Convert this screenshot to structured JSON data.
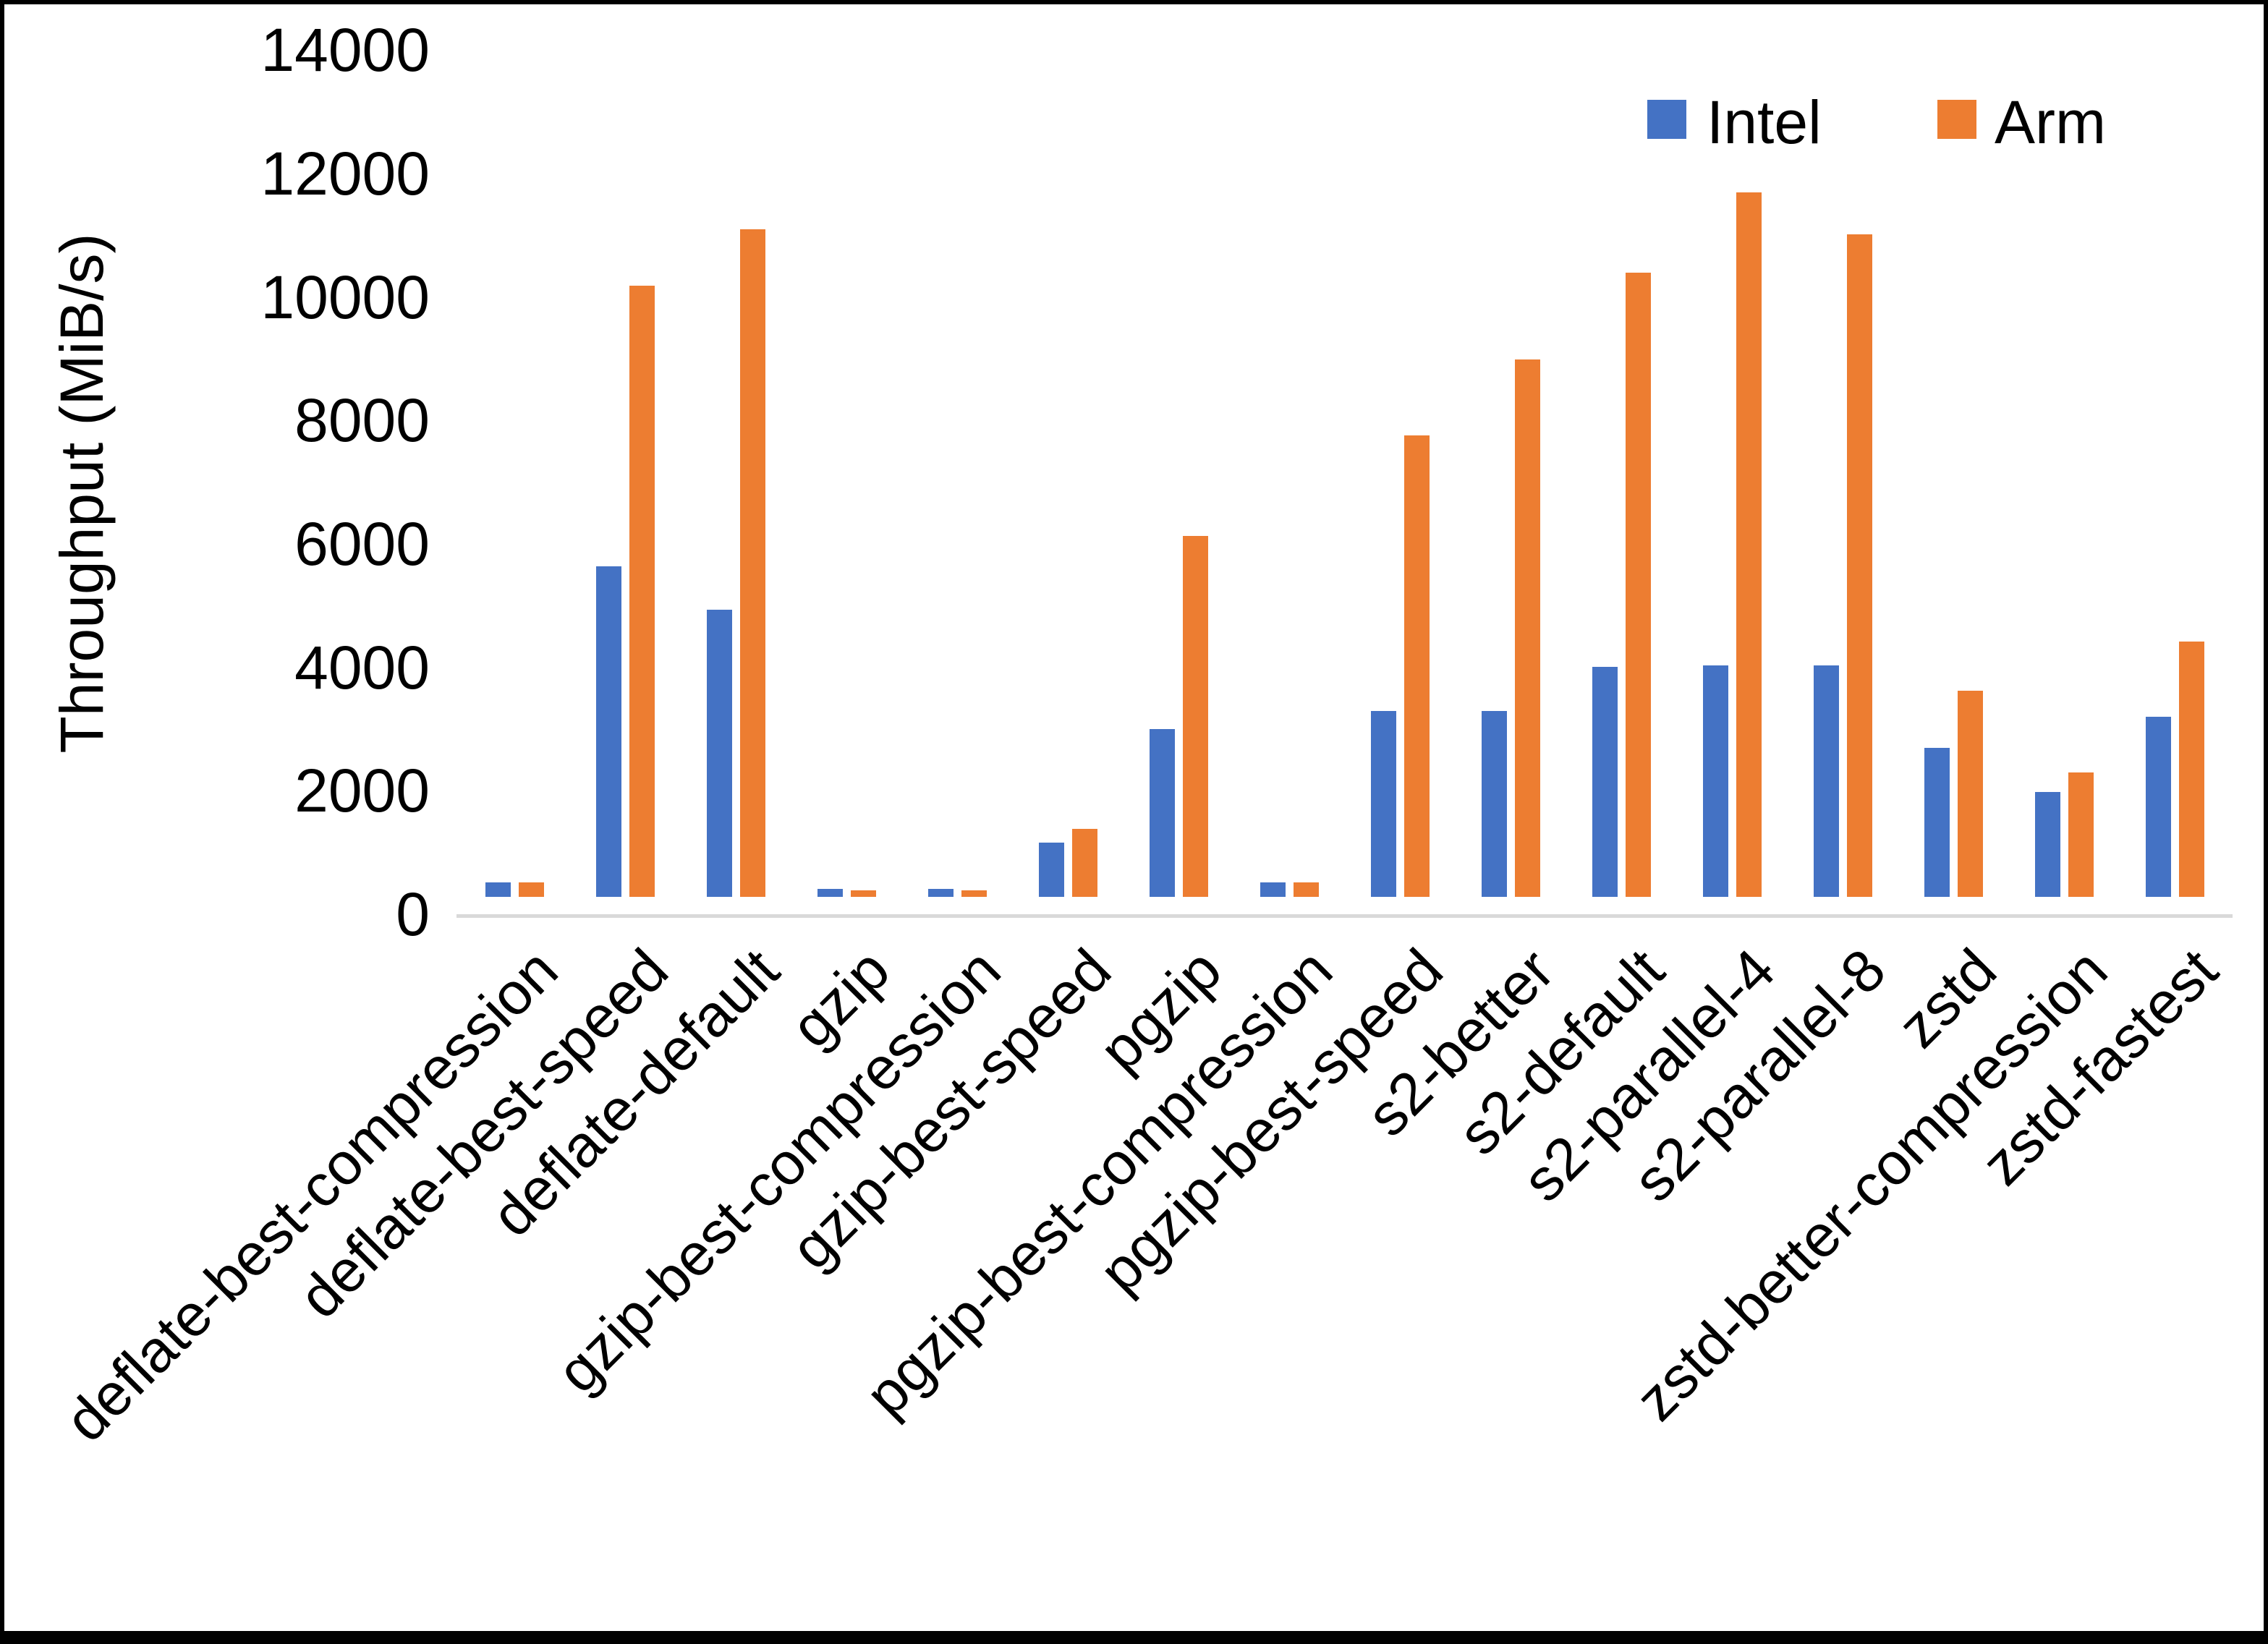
{
  "page": {
    "background": "#ffffff",
    "frame_color": "#000000",
    "axis_line_color": "#d9d9d9"
  },
  "axis": {
    "y_title": "Throughput (MiB/s)"
  },
  "legend": {
    "position": "top-right",
    "items": [
      {
        "label": "Intel",
        "color": "#4472c4",
        "icon": "legend-swatch-square"
      },
      {
        "label": "Arm",
        "color": "#ed7d31",
        "icon": "legend-swatch-square"
      }
    ]
  },
  "chart_data": {
    "type": "bar",
    "title": "",
    "xlabel": "",
    "ylabel": "Throughput (MiB/s)",
    "ylim": [
      0,
      14000
    ],
    "ytick_interval": 2000,
    "yticks": [
      0,
      2000,
      4000,
      6000,
      8000,
      10000,
      12000,
      14000
    ],
    "grid": false,
    "legend_position": "top-right",
    "categories": [
      "deflate-best-compression",
      "deflate-best-speed",
      "deflate-default",
      "gzip",
      "gzip-best-compression",
      "gzip-best-speed",
      "pgzip",
      "pgzip-best-compression",
      "pgzip-best-speed",
      "s2-better",
      "s2-default",
      "s2-parallel-4",
      "s2-parallel-8",
      "zstd",
      "zstd-better-compression",
      "zstd-fastest"
    ],
    "series": [
      {
        "name": "Intel",
        "color": "#4472c4",
        "values": [
          240,
          5350,
          4650,
          130,
          130,
          880,
          2720,
          230,
          3010,
          3010,
          3730,
          3745,
          3745,
          2410,
          1700,
          2920
        ]
      },
      {
        "name": "Arm",
        "color": "#ed7d31",
        "values": [
          235,
          9900,
          10820,
          100,
          110,
          1100,
          5850,
          240,
          7470,
          8700,
          10110,
          11410,
          10730,
          3340,
          2010,
          4140
        ]
      }
    ]
  }
}
